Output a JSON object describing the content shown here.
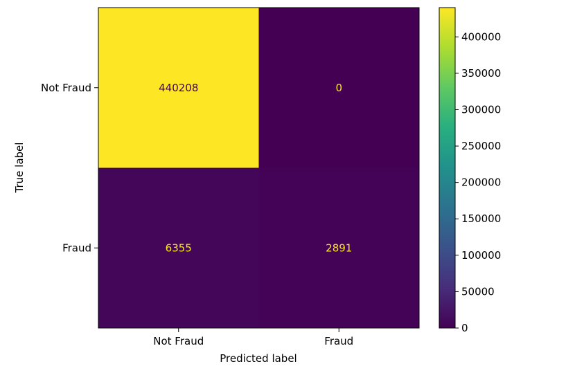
{
  "chart_data": {
    "type": "heatmap",
    "title": "",
    "xlabel": "Predicted label",
    "ylabel": "True label",
    "x_categories": [
      "Not Fraud",
      "Fraud"
    ],
    "y_categories": [
      "Not Fraud",
      "Fraud"
    ],
    "values": [
      [
        440208,
        0
      ],
      [
        6355,
        2891
      ]
    ],
    "value_labels": [
      [
        "440208",
        "0"
      ],
      [
        "6355",
        "2891"
      ]
    ],
    "colormap": "viridis",
    "colorbar": {
      "range": [
        0,
        440208
      ],
      "ticks": [
        0,
        50000,
        100000,
        150000,
        200000,
        250000,
        300000,
        350000,
        400000
      ],
      "tick_labels": [
        "0",
        "50000",
        "100000",
        "150000",
        "200000",
        "250000",
        "300000",
        "350000",
        "400000"
      ]
    },
    "text_colors": {
      "on_dark": "#fde725",
      "on_light": "#440154"
    },
    "grid": false
  }
}
